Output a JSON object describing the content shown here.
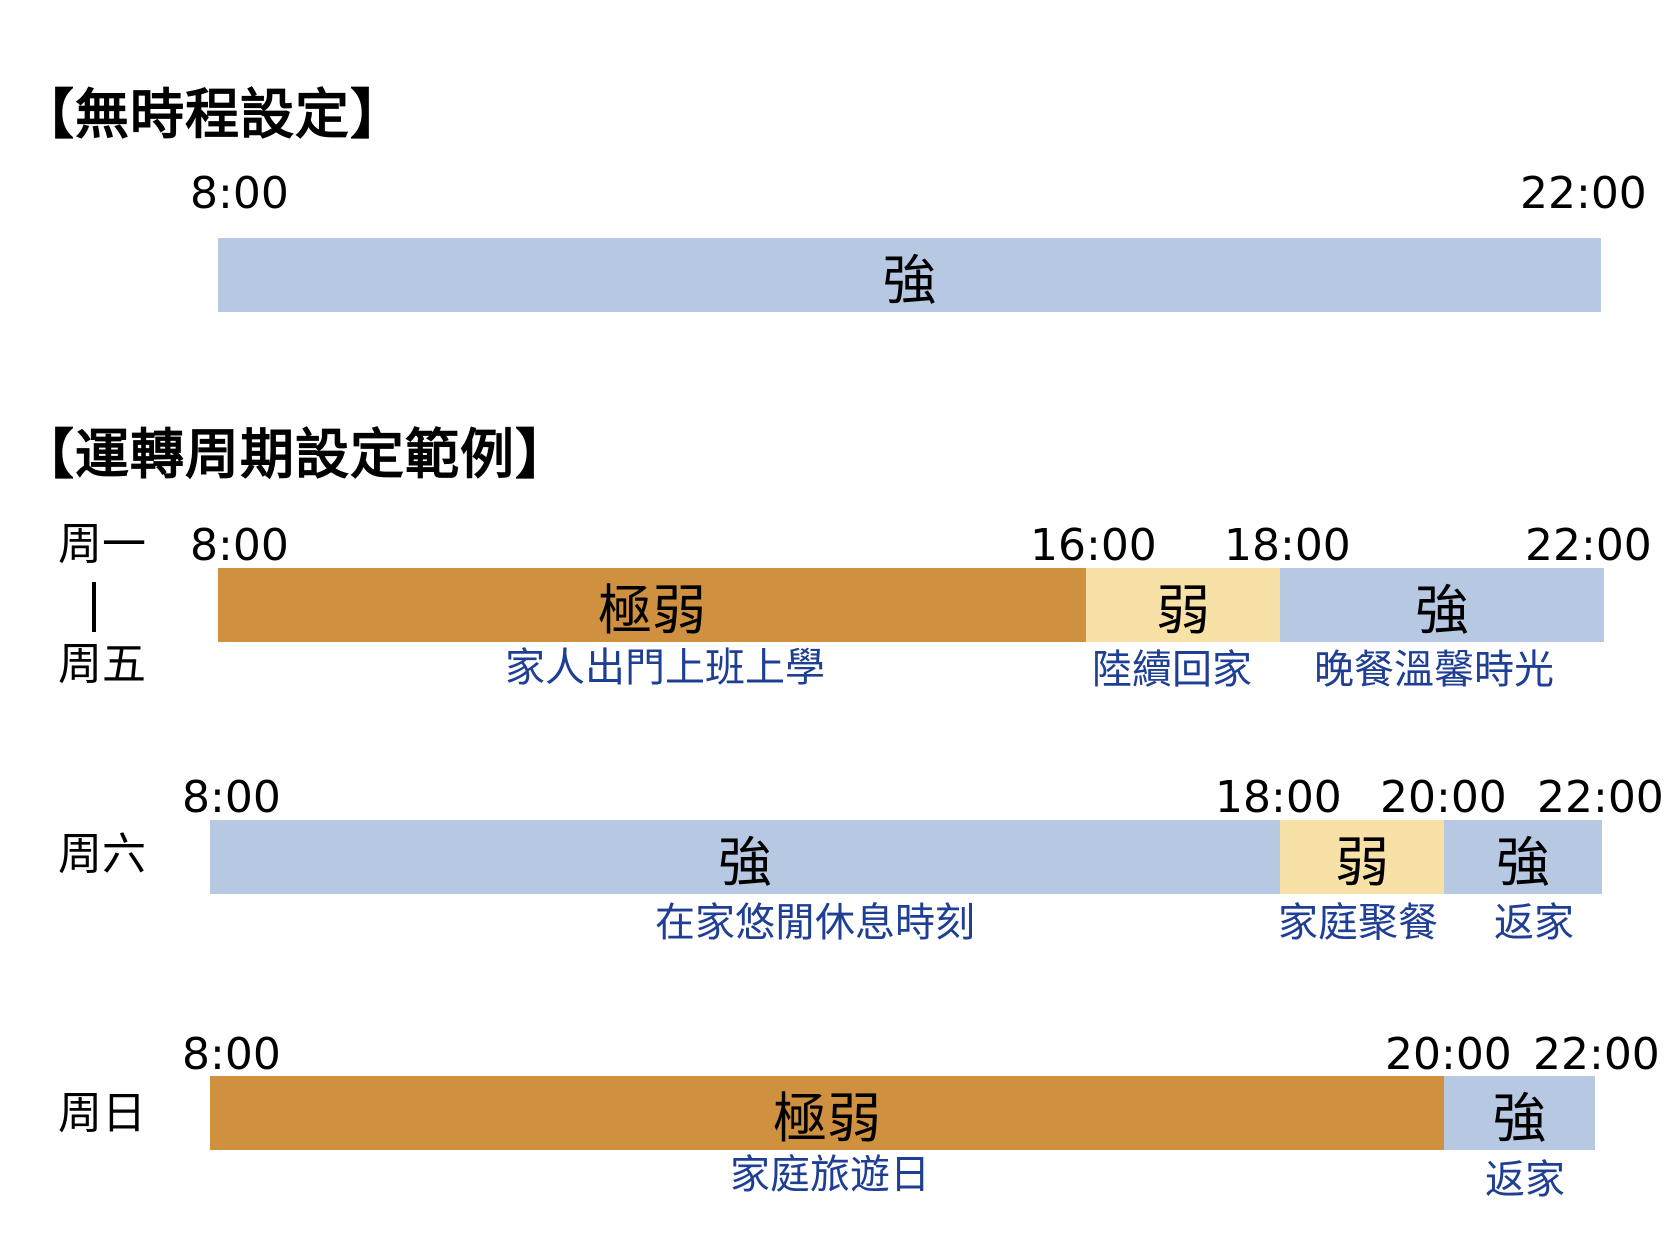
{
  "colors": {
    "strong": "#b7c8e3",
    "weak": "#f8e1a6",
    "very_weak": "#cf913f",
    "label": "#1f3f94"
  },
  "section_no_schedule": {
    "title": "【無時程設定】",
    "start_time": "8:00",
    "end_time": "22:00",
    "bar_label": "強"
  },
  "section_cycle": {
    "title": "【運轉周期設定範例】",
    "weekday": {
      "day_top": "周一",
      "day_separator": "|",
      "day_bottom": "周五",
      "times": [
        "8:00",
        "16:00",
        "18:00",
        "22:00"
      ],
      "segments": [
        {
          "level": "極弱",
          "start": "8:00",
          "end": "16:00",
          "note": "家人出門上班上學"
        },
        {
          "level": "弱",
          "start": "16:00",
          "end": "18:00",
          "note": "陸續回家"
        },
        {
          "level": "強",
          "start": "18:00",
          "end": "22:00",
          "note": "晚餐溫馨時光"
        }
      ]
    },
    "saturday": {
      "day": "周六",
      "times": [
        "8:00",
        "18:00",
        "20:00",
        "22:00"
      ],
      "segments": [
        {
          "level": "強",
          "start": "8:00",
          "end": "18:00",
          "note": "在家悠閒休息時刻"
        },
        {
          "level": "弱",
          "start": "18:00",
          "end": "20:00",
          "note": "家庭聚餐"
        },
        {
          "level": "強",
          "start": "20:00",
          "end": "22:00",
          "note": "返家"
        }
      ]
    },
    "sunday": {
      "day": "周日",
      "times": [
        "8:00",
        "20:00",
        "22:00"
      ],
      "segments": [
        {
          "level": "極弱",
          "start": "8:00",
          "end": "20:00",
          "note": "家庭旅遊日"
        },
        {
          "level": "強",
          "start": "20:00",
          "end": "22:00",
          "note": "返家"
        }
      ]
    }
  }
}
